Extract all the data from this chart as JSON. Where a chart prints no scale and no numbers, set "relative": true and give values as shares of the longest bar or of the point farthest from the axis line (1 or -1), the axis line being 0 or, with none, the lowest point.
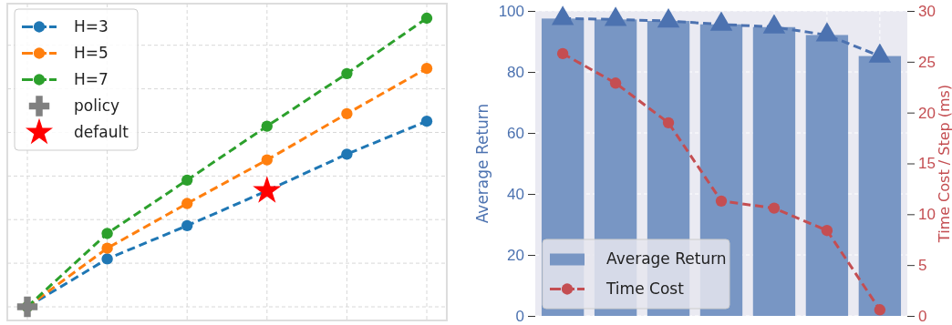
{
  "chart_data": [
    {
      "type": "line",
      "categories": [
        null,
        null,
        null,
        null,
        null,
        null
      ],
      "relative": true,
      "grid": true,
      "legend": "top left",
      "tick_labels": false,
      "line_style": "dashed",
      "series": [
        {
          "name": "H=3",
          "color": "#1f77b4",
          "marker": "circle",
          "values": [
            0,
            0.166,
            0.281,
            0.402,
            0.529,
            0.643
          ]
        },
        {
          "name": "H=5",
          "color": "#ff7f0e",
          "marker": "circle",
          "values": [
            0,
            0.203,
            0.358,
            0.509,
            0.669,
            0.826
          ]
        },
        {
          "name": "H=7",
          "color": "#2ca02c",
          "marker": "circle",
          "values": [
            0,
            0.254,
            0.439,
            0.626,
            0.808,
            1
          ]
        },
        {
          "name": "policy",
          "color": "#808080",
          "marker": "cross",
          "values": [
            0,
            null,
            null,
            null,
            null,
            null
          ]
        },
        {
          "name": "default",
          "color": "#ff0000",
          "marker": "star",
          "values": [
            null,
            null,
            null,
            0.402,
            null,
            null
          ]
        }
      ]
    },
    {
      "type": "bar",
      "categories": [
        null,
        null,
        null,
        null,
        null,
        null,
        null
      ],
      "ylabel": "Average Return",
      "y2label": "Time Cost / Step (ms)",
      "ylim": [
        0,
        100
      ],
      "yticks": [
        0,
        20,
        40,
        60,
        80,
        100
      ],
      "y2lim": [
        0,
        30
      ],
      "y2ticks": [
        0,
        5,
        10,
        15,
        20,
        25,
        30
      ],
      "grid": true,
      "legend": "bottom left",
      "tick_labels": "y",
      "series": [
        {
          "name": "Average Return",
          "color": "#7896c4",
          "values": [
            97.5,
            97.2,
            96.7,
            95.6,
            94.7,
            92.1,
            85.2
          ]
        },
        {
          "type": "line",
          "color": "#4c72b0",
          "marker": "triangle",
          "line_style": "dashed",
          "values": [
            97.5,
            97.2,
            96.7,
            95.6,
            94.7,
            92.1,
            85.2
          ]
        },
        {
          "name": "Time Cost",
          "type": "line",
          "axis": "y2",
          "color": "#c44e52",
          "marker": "circle",
          "line_style": "dashed",
          "values": [
            25.8,
            22.9,
            19.0,
            11.3,
            10.6,
            8.4,
            0.6
          ]
        }
      ]
    }
  ]
}
